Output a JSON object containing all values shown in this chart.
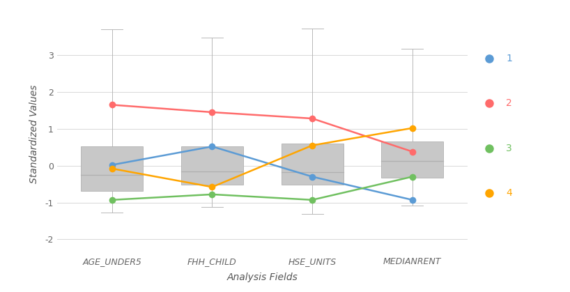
{
  "categories": [
    "AGE_UNDER5",
    "FHH_CHILD",
    "HSE_UNITS",
    "MEDIANRENT"
  ],
  "box_stats": [
    {
      "whisker_low": -1.28,
      "q1": -0.68,
      "median": -0.25,
      "q3": 0.53,
      "whisker_high": 3.7
    },
    {
      "whisker_low": -1.12,
      "q1": -0.52,
      "median": -0.15,
      "q3": 0.53,
      "whisker_high": 3.48
    },
    {
      "whisker_low": -1.32,
      "q1": -0.52,
      "median": -0.18,
      "q3": 0.6,
      "whisker_high": 3.72
    },
    {
      "whisker_low": -1.08,
      "q1": -0.32,
      "median": 0.12,
      "q3": 0.65,
      "whisker_high": 3.18
    }
  ],
  "cluster_lines": {
    "1": {
      "color": "#5B9BD5",
      "values": [
        0.02,
        0.52,
        -0.3,
        -0.93
      ]
    },
    "2": {
      "color": "#FF6B6B",
      "values": [
        1.65,
        1.45,
        1.28,
        0.38
      ]
    },
    "3": {
      "color": "#70C060",
      "values": [
        -0.93,
        -0.78,
        -0.93,
        -0.3
      ]
    },
    "4": {
      "color": "#FFA500",
      "values": [
        -0.08,
        -0.58,
        0.55,
        1.02
      ]
    }
  },
  "xlabel": "Analysis Fields",
  "ylabel": "Standardized Values",
  "ylim": [
    -2.4,
    4.1
  ],
  "yticks": [
    -2,
    -1,
    0,
    1,
    2,
    3
  ],
  "box_color": "#C8C8C8",
  "box_edge_color": "#B0B0B0",
  "whisker_color": "#B8B8B8",
  "median_color": "#B0B0B0",
  "background_color": "#FFFFFF",
  "grid_color": "#D8D8D8",
  "box_width": 0.62,
  "cap_ratio": 0.35,
  "marker_size": 7,
  "line_width": 1.8,
  "legend_labels": [
    "1",
    "2",
    "3",
    "4"
  ]
}
